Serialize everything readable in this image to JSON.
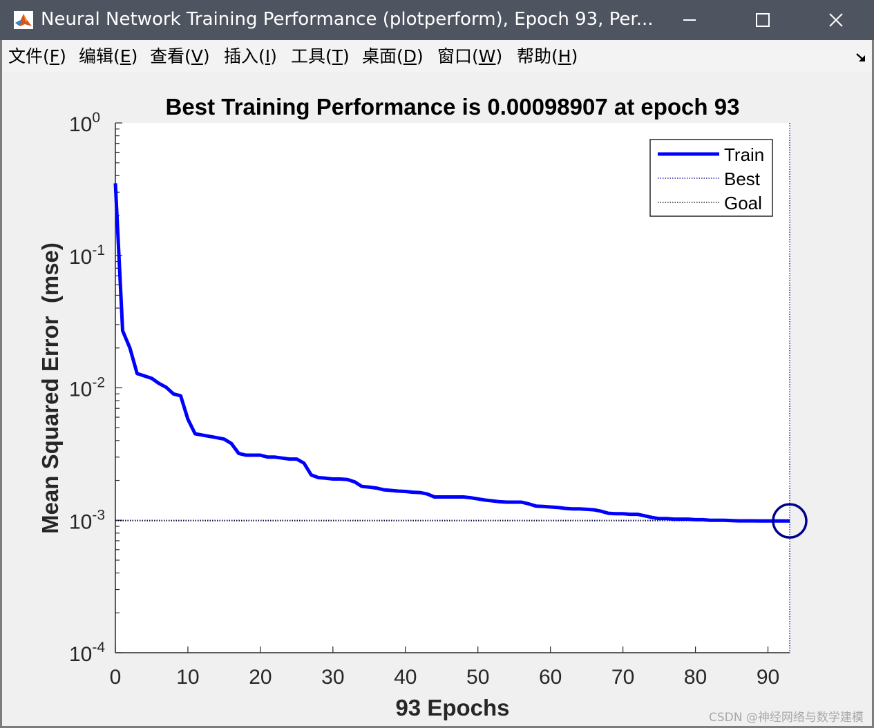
{
  "window": {
    "title": "Neural Network Training Performance (plotperform), Epoch 93, Per..."
  },
  "icons": {
    "app": "matlab-icon",
    "minimize": "minimize-icon",
    "maximize": "maximize-icon",
    "close": "close-icon",
    "dock": "dock-arrow-icon"
  },
  "menu": {
    "items": [
      {
        "text": "文件(",
        "key": "F",
        "end": ")"
      },
      {
        "text": "编辑(",
        "key": "E",
        "end": ")"
      },
      {
        "text": "查看(",
        "key": "V",
        "end": ")"
      },
      {
        "text": "插入(",
        "key": "I",
        "end": ")"
      },
      {
        "text": "工具(",
        "key": "T",
        "end": ")"
      },
      {
        "text": "桌面(",
        "key": "D",
        "end": ")"
      },
      {
        "text": "窗口(",
        "key": "W",
        "end": ")"
      },
      {
        "text": "帮助(",
        "key": "H",
        "end": ")"
      }
    ]
  },
  "watermark": "CSDN @神经网络与数学建模",
  "colors": {
    "train": "#0000ff",
    "best_marker": "#00008b",
    "goal": "#000000"
  },
  "chart_data": {
    "type": "line",
    "title": "Best Training Performance is 0.00098907 at epoch 93",
    "xlabel": "93 Epochs",
    "ylabel": "Mean Squared Error  (mse)",
    "yscale": "log",
    "xlim": [
      0,
      93
    ],
    "ylim": [
      0.0001,
      1
    ],
    "xticks": [
      0,
      10,
      20,
      30,
      40,
      50,
      60,
      70,
      80,
      90
    ],
    "yticks": [
      {
        "base": "10",
        "exp": "0",
        "value": 1
      },
      {
        "base": "10",
        "exp": "-1",
        "value": 0.1
      },
      {
        "base": "10",
        "exp": "-2",
        "value": 0.01
      },
      {
        "base": "10",
        "exp": "-3",
        "value": 0.001
      },
      {
        "base": "10",
        "exp": "-4",
        "value": 0.0001
      }
    ],
    "legend": {
      "position": "top-right",
      "entries": [
        "Train",
        "Best",
        "Goal"
      ]
    },
    "series": [
      {
        "name": "Train",
        "x": [
          0,
          1,
          2,
          3,
          4,
          5,
          6,
          7,
          8,
          9,
          10,
          11,
          12,
          13,
          14,
          15,
          16,
          17,
          18,
          19,
          20,
          21,
          22,
          23,
          24,
          25,
          26,
          27,
          28,
          29,
          30,
          31,
          32,
          33,
          34,
          35,
          36,
          37,
          38,
          39,
          40,
          41,
          42,
          43,
          44,
          45,
          46,
          47,
          48,
          49,
          50,
          51,
          52,
          53,
          54,
          55,
          56,
          57,
          58,
          59,
          60,
          61,
          62,
          63,
          64,
          65,
          66,
          67,
          68,
          69,
          70,
          71,
          72,
          73,
          74,
          75,
          76,
          77,
          78,
          79,
          80,
          81,
          82,
          83,
          84,
          85,
          86,
          87,
          88,
          89,
          90,
          91,
          92,
          93
        ],
        "y": [
          0.35,
          0.027,
          0.02,
          0.0128,
          0.0123,
          0.0118,
          0.0108,
          0.0101,
          0.009,
          0.0087,
          0.0058,
          0.0045,
          0.0044,
          0.0043,
          0.0042,
          0.0041,
          0.0038,
          0.0032,
          0.0031,
          0.0031,
          0.0031,
          0.003,
          0.003,
          0.00295,
          0.0029,
          0.0029,
          0.0027,
          0.0022,
          0.0021,
          0.00208,
          0.00205,
          0.00205,
          0.00203,
          0.00195,
          0.0018,
          0.00178,
          0.00175,
          0.0017,
          0.00168,
          0.00166,
          0.00165,
          0.00163,
          0.00162,
          0.00158,
          0.0015,
          0.0015,
          0.0015,
          0.0015,
          0.0015,
          0.00148,
          0.00145,
          0.00142,
          0.0014,
          0.00138,
          0.00137,
          0.00137,
          0.00137,
          0.00133,
          0.00128,
          0.00127,
          0.00126,
          0.00125,
          0.00123,
          0.00122,
          0.00122,
          0.00121,
          0.0012,
          0.00117,
          0.00113,
          0.00112,
          0.00112,
          0.00111,
          0.00111,
          0.00108,
          0.00105,
          0.00103,
          0.00103,
          0.00102,
          0.00102,
          0.00102,
          0.00101,
          0.00101,
          0.001,
          0.001,
          0.001,
          0.000995,
          0.00099,
          0.00099,
          0.00099,
          0.000989,
          0.000989,
          0.000989,
          0.000989,
          0.00098907
        ]
      }
    ],
    "best": {
      "epoch": 93,
      "value": 0.00098907
    },
    "goal": 0.001
  }
}
